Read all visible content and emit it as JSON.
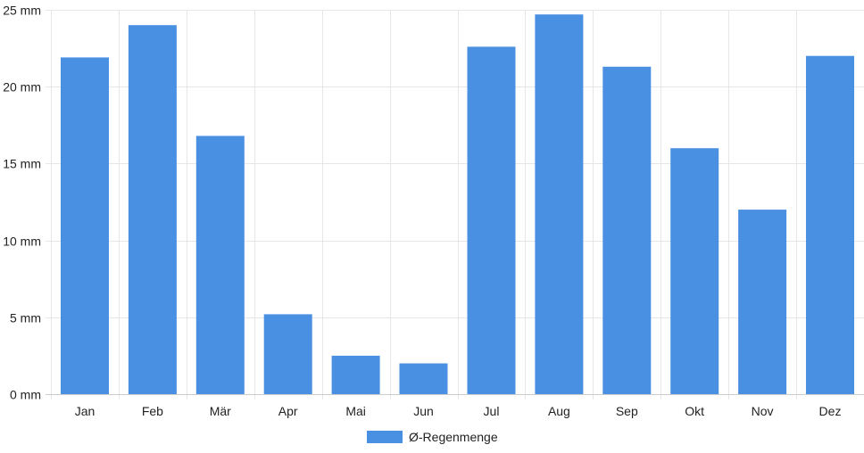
{
  "chart_data": {
    "type": "bar",
    "categories": [
      "Jan",
      "Feb",
      "Mär",
      "Apr",
      "Mai",
      "Jun",
      "Jul",
      "Aug",
      "Sep",
      "Okt",
      "Nov",
      "Dez"
    ],
    "series": [
      {
        "name": "Ø-Regenmenge",
        "color": "#4a90e2",
        "values": [
          21.9,
          24.0,
          16.8,
          5.2,
          2.5,
          2.0,
          22.6,
          24.7,
          21.3,
          16.0,
          12.0,
          22.0
        ]
      }
    ],
    "ylim": [
      0,
      25
    ],
    "yticks": [
      {
        "value": 0,
        "label": "0 mm"
      },
      {
        "value": 5,
        "label": "5 mm"
      },
      {
        "value": 10,
        "label": "10 mm"
      },
      {
        "value": 15,
        "label": "15 mm"
      },
      {
        "value": 20,
        "label": "20 mm"
      },
      {
        "value": 25,
        "label": "25 mm"
      }
    ],
    "grid": true,
    "legend_position": "bottom"
  }
}
